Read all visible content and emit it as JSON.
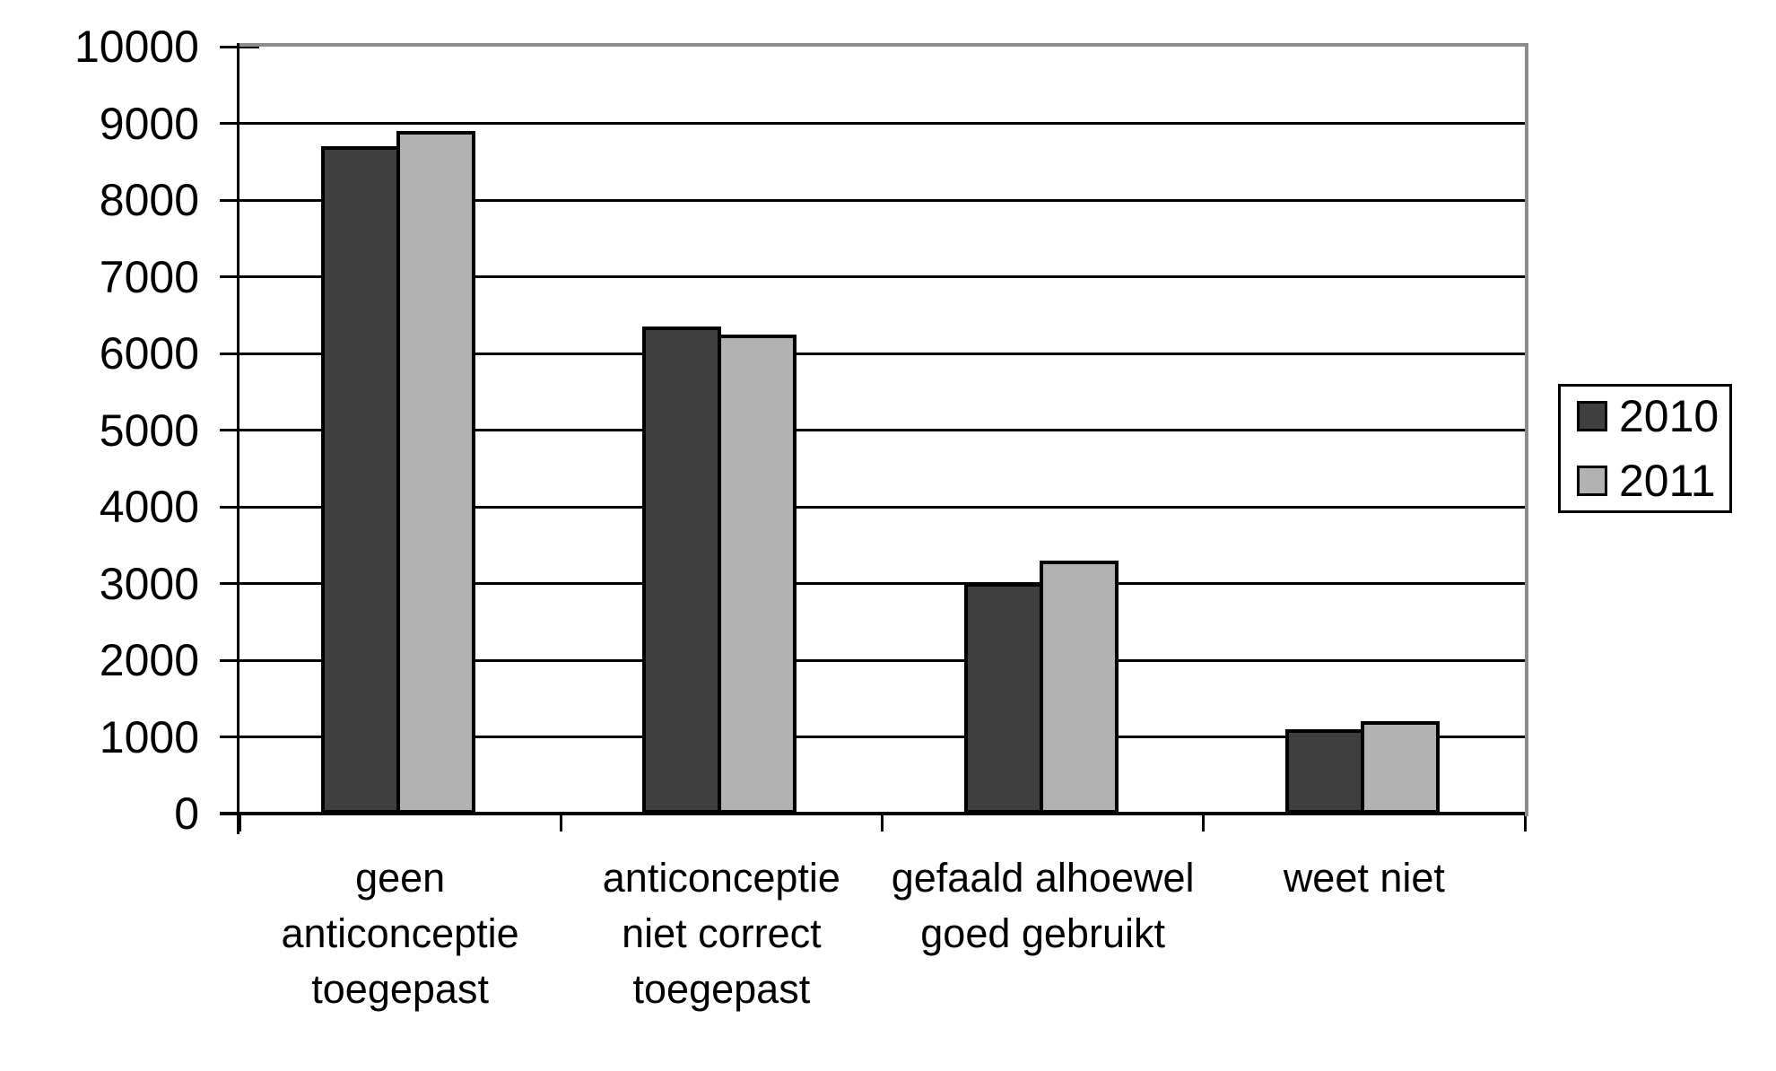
{
  "chart_data": {
    "type": "bar",
    "title": "",
    "xlabel": "",
    "ylabel": "",
    "categories": [
      "geen anticonceptie toegepast",
      "anticonceptie niet correct toegepast",
      "gefaald alhoewel goed gebruikt",
      "weet niet"
    ],
    "series": [
      {
        "name": "2010",
        "color": "#3F3F3F",
        "values": [
          8700,
          6350,
          3000,
          1100
        ]
      },
      {
        "name": "2011",
        "color": "#B2B2B2",
        "values": [
          8900,
          6250,
          3300,
          1200
        ]
      }
    ],
    "ylim": [
      0,
      10000
    ],
    "yticks": [
      {
        "value": 0,
        "label": "0"
      },
      {
        "value": 1000,
        "label": "1000"
      },
      {
        "value": 2000,
        "label": "2000"
      },
      {
        "value": 3000,
        "label": "3000"
      },
      {
        "value": 4000,
        "label": "4000"
      },
      {
        "value": 5000,
        "label": "5000"
      },
      {
        "value": 6000,
        "label": "6000"
      },
      {
        "value": 7000,
        "label": "7000"
      },
      {
        "value": 8000,
        "label": "8000"
      },
      {
        "value": 9000,
        "label": "9000"
      },
      {
        "value": 10000,
        "label": "10000"
      }
    ],
    "grid": true,
    "legend_position": "right",
    "colors": {
      "gridline": "#000000",
      "axis": "#000000",
      "plot_border_top_right": "#8C8C8C",
      "bar_border": "#000000",
      "background": "#FFFFFF"
    }
  }
}
